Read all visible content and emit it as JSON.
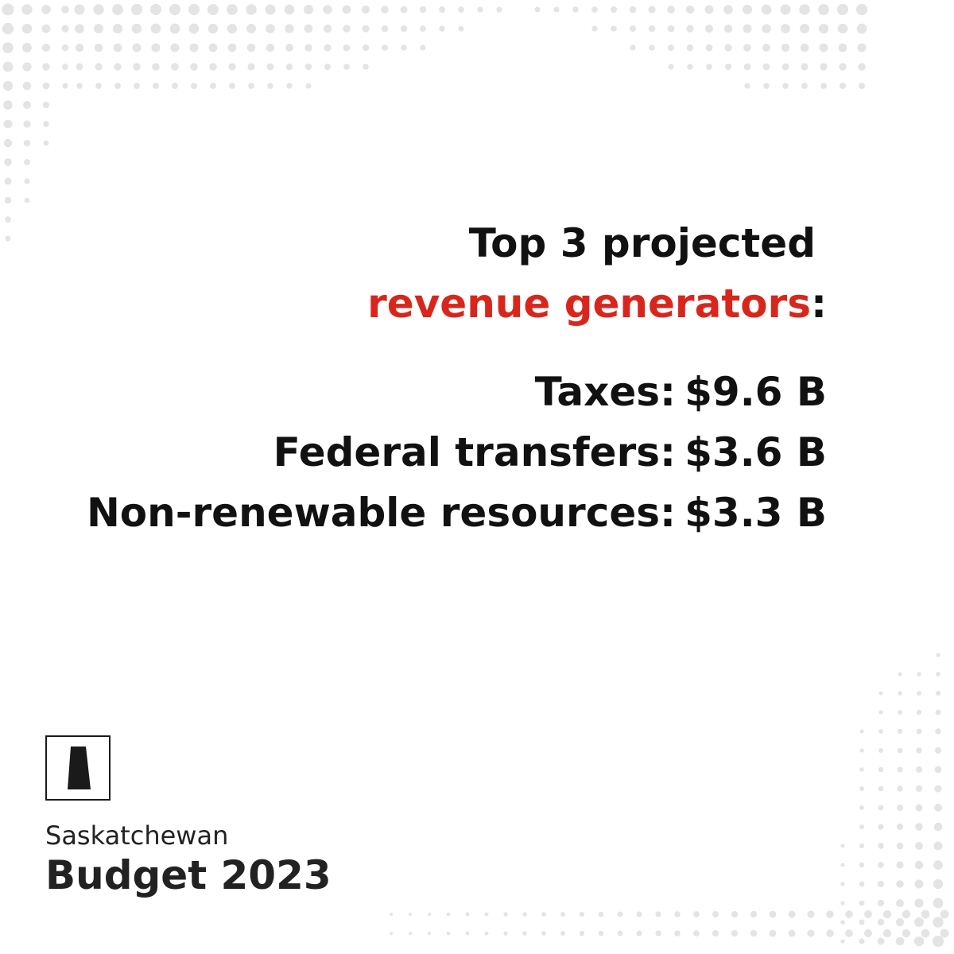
{
  "headline": {
    "line1": "Top 3 projected",
    "line2_highlight": "revenue generators",
    "line2_suffix": ":"
  },
  "revenue_items": [
    {
      "label": "Taxes:",
      "value": "$9.6 B"
    },
    {
      "label": "Federal transfers:",
      "value": "$3.6 B"
    },
    {
      "label": "Non-renewable resources:",
      "value": "$3.3 B"
    }
  ],
  "brand": {
    "name": "Saskatchewan",
    "title": "Budget 2023",
    "logo_icon": "saskatchewan-province-icon"
  },
  "colors": {
    "accent": "#d9261c",
    "text": "#111111",
    "dots": "#e4e4e4"
  }
}
